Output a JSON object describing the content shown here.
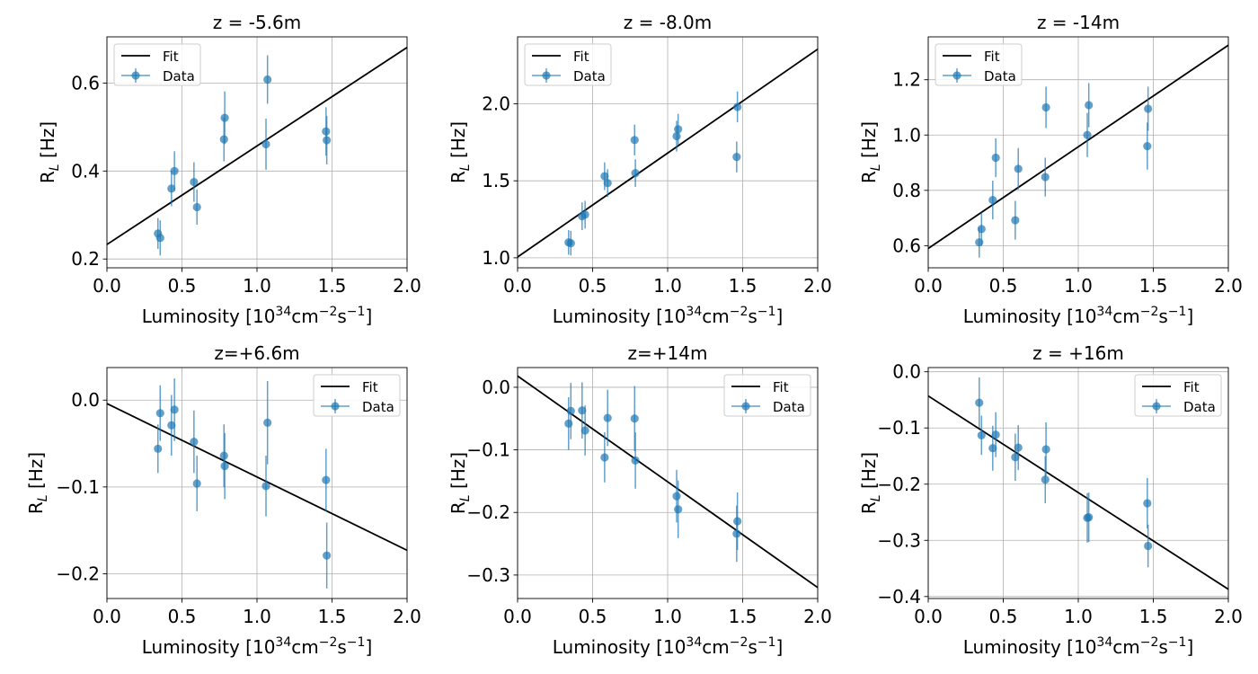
{
  "colors": {
    "data": "#1f77b4",
    "fit": "#000000",
    "grid": "#b0b0b0",
    "axis": "#000000"
  },
  "chart_data": [
    {
      "type": "scatter",
      "title": "z = -5.6m",
      "xlabel": "Luminosity [10",
      "xlabel_exp1": "34",
      "xlabel_mid": "cm",
      "xlabel_exp2": "−2",
      "xlabel_mid2": "s",
      "xlabel_exp3": "−1",
      "xlabel_end": "]",
      "ylabel": "R",
      "ylabel_sub": "L",
      "ylabel_end": " [Hz]",
      "xlim": [
        0.0,
        2.0
      ],
      "ylim": [
        0.18,
        0.705
      ],
      "xticks": [
        0.0,
        0.5,
        1.0,
        1.5,
        2.0
      ],
      "xtick_labels": [
        "0.0",
        "0.5",
        "1.0",
        "1.5",
        "2.0"
      ],
      "yticks": [
        0.2,
        0.4,
        0.6
      ],
      "ytick_labels": [
        "0.2",
        "0.4",
        "0.6"
      ],
      "grid": true,
      "legend": {
        "position": "top-left",
        "entries": [
          "Fit",
          "Data"
        ]
      },
      "fit": {
        "x": [
          0.0,
          2.0
        ],
        "y": [
          0.233,
          0.681
        ]
      },
      "series": [
        {
          "name": "Data",
          "x": [
            0.34,
            0.355,
            0.43,
            0.45,
            0.58,
            0.6,
            0.78,
            0.785,
            1.06,
            1.07,
            1.46,
            1.465
          ],
          "y": [
            0.258,
            0.248,
            0.36,
            0.4,
            0.375,
            0.318,
            0.472,
            0.521,
            0.461,
            0.608,
            0.49,
            0.47
          ],
          "yerr": [
            0.035,
            0.04,
            0.04,
            0.045,
            0.045,
            0.04,
            0.05,
            0.06,
            0.058,
            0.055,
            0.055,
            0.055
          ]
        }
      ]
    },
    {
      "type": "scatter",
      "title": "z = -8.0m",
      "xlabel": "Luminosity [10",
      "xlabel_exp1": "34",
      "xlabel_mid": "cm",
      "xlabel_exp2": "−2",
      "xlabel_mid2": "s",
      "xlabel_exp3": "−1",
      "xlabel_end": "]",
      "ylabel": "R",
      "ylabel_sub": "L",
      "ylabel_end": " [Hz]",
      "xlim": [
        0.0,
        2.0
      ],
      "ylim": [
        0.935,
        2.435
      ],
      "xticks": [
        0.0,
        0.5,
        1.0,
        1.5,
        2.0
      ],
      "xtick_labels": [
        "0.0",
        "0.5",
        "1.0",
        "1.5",
        "2.0"
      ],
      "yticks": [
        1.0,
        1.5,
        2.0
      ],
      "ytick_labels": [
        "1.0",
        "1.5",
        "2.0"
      ],
      "grid": true,
      "legend": {
        "position": "top-left",
        "entries": [
          "Fit",
          "Data"
        ]
      },
      "fit": {
        "x": [
          0.0,
          2.0
        ],
        "y": [
          1.005,
          2.355
        ]
      },
      "series": [
        {
          "name": "Data",
          "x": [
            0.34,
            0.355,
            0.43,
            0.45,
            0.58,
            0.6,
            0.78,
            0.785,
            1.06,
            1.07,
            1.46,
            1.465
          ],
          "y": [
            1.1,
            1.095,
            1.27,
            1.28,
            1.53,
            1.485,
            1.765,
            1.55,
            1.79,
            1.835,
            1.655,
            1.98
          ],
          "yerr": [
            0.08,
            0.08,
            0.09,
            0.09,
            0.09,
            0.09,
            0.1,
            0.09,
            0.1,
            0.1,
            0.1,
            0.1
          ]
        }
      ]
    },
    {
      "type": "scatter",
      "title": "z = -14m",
      "xlabel": "Luminosity [10",
      "xlabel_exp1": "34",
      "xlabel_mid": "cm",
      "xlabel_exp2": "−2",
      "xlabel_mid2": "s",
      "xlabel_exp3": "−1",
      "xlabel_end": "]",
      "ylabel": "R",
      "ylabel_sub": "L",
      "ylabel_end": " [Hz]",
      "xlim": [
        0.0,
        2.0
      ],
      "ylim": [
        0.52,
        1.355
      ],
      "xticks": [
        0.0,
        0.5,
        1.0,
        1.5,
        2.0
      ],
      "xtick_labels": [
        "0.0",
        "0.5",
        "1.0",
        "1.5",
        "2.0"
      ],
      "yticks": [
        0.6,
        0.8,
        1.0,
        1.2
      ],
      "ytick_labels": [
        "0.6",
        "0.8",
        "1.0",
        "1.2"
      ],
      "grid": true,
      "legend": {
        "position": "top-left",
        "entries": [
          "Fit",
          "Data"
        ]
      },
      "fit": {
        "x": [
          0.0,
          2.0
        ],
        "y": [
          0.59,
          1.325
        ]
      },
      "series": [
        {
          "name": "Data",
          "x": [
            0.34,
            0.355,
            0.43,
            0.45,
            0.58,
            0.6,
            0.78,
            0.785,
            1.06,
            1.07,
            1.46,
            1.465
          ],
          "y": [
            0.612,
            0.66,
            0.765,
            0.918,
            0.692,
            0.878,
            0.848,
            1.1,
            1.0,
            1.108,
            0.96,
            1.095
          ],
          "yerr": [
            0.055,
            0.06,
            0.07,
            0.07,
            0.07,
            0.075,
            0.07,
            0.075,
            0.08,
            0.08,
            0.085,
            0.08
          ]
        }
      ]
    },
    {
      "type": "scatter",
      "title": "z=+6.6m",
      "xlabel": "Luminosity [10",
      "xlabel_exp1": "34",
      "xlabel_mid": "cm",
      "xlabel_exp2": "−2",
      "xlabel_mid2": "s",
      "xlabel_exp3": "−1",
      "xlabel_end": "]",
      "ylabel": "R",
      "ylabel_sub": "L",
      "ylabel_end": " [Hz]",
      "xlim": [
        0.0,
        2.0
      ],
      "ylim": [
        -0.2285,
        0.0375
      ],
      "xticks": [
        0.0,
        0.5,
        1.0,
        1.5,
        2.0
      ],
      "xtick_labels": [
        "0.0",
        "0.5",
        "1.0",
        "1.5",
        "2.0"
      ],
      "yticks": [
        -0.2,
        -0.1,
        0.0
      ],
      "ytick_labels": [
        "−0.2",
        "−0.1",
        "0.0"
      ],
      "grid": true,
      "legend": {
        "position": "top-right",
        "entries": [
          "Fit",
          "Data"
        ]
      },
      "fit": {
        "x": [
          0.0,
          2.0
        ],
        "y": [
          -0.004,
          -0.173
        ]
      },
      "series": [
        {
          "name": "Data",
          "x": [
            0.34,
            0.355,
            0.43,
            0.45,
            0.58,
            0.6,
            0.78,
            0.785,
            1.06,
            1.07,
            1.46,
            1.465
          ],
          "y": [
            -0.056,
            -0.015,
            -0.029,
            -0.011,
            -0.048,
            -0.096,
            -0.064,
            -0.076,
            -0.099,
            -0.026,
            -0.092,
            -0.179
          ],
          "yerr": [
            0.028,
            0.032,
            0.035,
            0.036,
            0.036,
            0.032,
            0.036,
            0.038,
            0.035,
            0.048,
            0.036,
            0.038
          ]
        }
      ]
    },
    {
      "type": "scatter",
      "title": "z=+14m",
      "xlabel": "Luminosity [10",
      "xlabel_exp1": "34",
      "xlabel_mid": "cm",
      "xlabel_exp2": "−2",
      "xlabel_mid2": "s",
      "xlabel_exp3": "−1",
      "xlabel_end": "]",
      "ylabel": "R",
      "ylabel_sub": "L",
      "ylabel_end": " [Hz]",
      "xlim": [
        0.0,
        2.0
      ],
      "ylim": [
        -0.3375,
        0.0315
      ],
      "xticks": [
        0.0,
        0.5,
        1.0,
        1.5,
        2.0
      ],
      "xtick_labels": [
        "0.0",
        "0.5",
        "1.0",
        "1.5",
        "2.0"
      ],
      "yticks": [
        -0.3,
        -0.2,
        -0.1,
        0.0
      ],
      "ytick_labels": [
        "−0.3",
        "−0.2",
        "−0.1",
        "0.0"
      ],
      "grid": true,
      "legend": {
        "position": "top-right",
        "entries": [
          "Fit",
          "Data"
        ]
      },
      "fit": {
        "x": [
          0.0,
          2.0
        ],
        "y": [
          0.018,
          -0.32
        ]
      },
      "series": [
        {
          "name": "Data",
          "x": [
            0.34,
            0.355,
            0.43,
            0.45,
            0.58,
            0.6,
            0.78,
            0.785,
            1.06,
            1.07,
            1.46,
            1.465
          ],
          "y": [
            -0.058,
            -0.038,
            -0.037,
            -0.069,
            -0.112,
            -0.049,
            -0.05,
            -0.117,
            -0.174,
            -0.195,
            -0.234,
            -0.214
          ],
          "yerr": [
            0.042,
            0.045,
            0.045,
            0.04,
            0.04,
            0.045,
            0.052,
            0.045,
            0.042,
            0.046,
            0.045,
            0.046
          ]
        }
      ]
    },
    {
      "type": "scatter",
      "title": "z = +16m",
      "xlabel": "Luminosity [10",
      "xlabel_exp1": "34",
      "xlabel_mid": "cm",
      "xlabel_exp2": "−2",
      "xlabel_mid2": "s",
      "xlabel_exp3": "−1",
      "xlabel_end": "]",
      "ylabel": "R",
      "ylabel_sub": "L",
      "ylabel_end": " [Hz]",
      "xlim": [
        0.0,
        2.0
      ],
      "ylim": [
        -0.4035,
        0.0075
      ],
      "xticks": [
        0.0,
        0.5,
        1.0,
        1.5,
        2.0
      ],
      "xtick_labels": [
        "0.0",
        "0.5",
        "1.0",
        "1.5",
        "2.0"
      ],
      "yticks": [
        -0.4,
        -0.3,
        -0.2,
        -0.1,
        0.0
      ],
      "ytick_labels": [
        "−0.4",
        "−0.3",
        "−0.2",
        "−0.1",
        "0.0"
      ],
      "grid": true,
      "legend": {
        "position": "top-right",
        "entries": [
          "Fit",
          "Data"
        ]
      },
      "fit": {
        "x": [
          0.0,
          2.0
        ],
        "y": [
          -0.043,
          -0.387
        ]
      },
      "series": [
        {
          "name": "Data",
          "x": [
            0.34,
            0.355,
            0.43,
            0.45,
            0.58,
            0.6,
            0.78,
            0.785,
            1.06,
            1.07,
            1.46,
            1.465
          ],
          "y": [
            -0.055,
            -0.113,
            -0.136,
            -0.112,
            -0.152,
            -0.135,
            -0.192,
            -0.138,
            -0.26,
            -0.259,
            -0.234,
            -0.31
          ],
          "yerr": [
            0.045,
            0.035,
            0.04,
            0.04,
            0.042,
            0.04,
            0.042,
            0.048,
            0.044,
            0.044,
            0.045,
            0.038
          ]
        }
      ]
    }
  ]
}
